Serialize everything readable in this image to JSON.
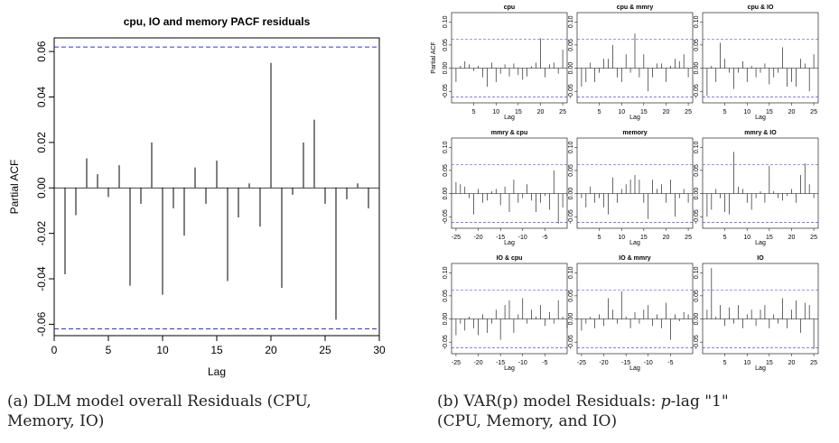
{
  "captions": {
    "a": {
      "line1": "(a) DLM model overall Residuals (CPU,",
      "line2": "Memory, IO)"
    },
    "b": {
      "line1_pre": "(b) VAR(p) model Residuals: ",
      "line1_p": "p",
      "line1_post": "-lag \"1\"",
      "line2": "(CPU, Memory, and IO)"
    }
  },
  "chart_data": [
    {
      "type": "bar",
      "title": "cpu, IO and memory PACF residuals",
      "xlabel": "Lag",
      "ylabel": "Partial ACF",
      "xlim": [
        0,
        30
      ],
      "ylim": [
        -0.065,
        0.066
      ],
      "xticks": [
        0,
        5,
        10,
        15,
        20,
        25,
        30
      ],
      "yticks": [
        -0.06,
        -0.04,
        -0.02,
        0.0,
        0.02,
        0.04,
        0.06
      ],
      "ytick_labels": [
        "-0.06",
        "-0.04",
        "-0.02",
        "0.00",
        "0.02",
        "0.04",
        "0.06"
      ],
      "conf_bound": 0.062,
      "x": [
        1,
        2,
        3,
        4,
        5,
        6,
        7,
        8,
        9,
        10,
        11,
        12,
        13,
        14,
        15,
        16,
        17,
        18,
        19,
        20,
        21,
        22,
        23,
        24,
        25,
        26,
        27,
        28,
        29
      ],
      "values": [
        -0.038,
        -0.012,
        0.013,
        0.006,
        -0.004,
        0.01,
        -0.043,
        -0.007,
        0.02,
        -0.047,
        -0.009,
        -0.021,
        0.009,
        -0.007,
        0.012,
        -0.041,
        -0.013,
        0.002,
        -0.017,
        0.055,
        -0.044,
        -0.003,
        0.02,
        0.03,
        -0.007,
        -0.058,
        -0.005,
        0.002,
        -0.009
      ],
      "grid": false
    },
    {
      "type": "bar",
      "title": "cpu",
      "xlabel": "Lag",
      "ylabel": "Partial ACF",
      "ylim": [
        -0.075,
        0.12
      ],
      "conf_bound": 0.062,
      "yticks": [
        -0.05,
        0.0,
        0.05,
        0.1
      ],
      "ytick_labels": [
        "-0.05",
        "0.00",
        "0.05",
        "0.10"
      ],
      "xlim": [
        0,
        26
      ],
      "xticks": [
        5,
        10,
        15,
        20,
        25
      ],
      "x": [
        1,
        2,
        3,
        4,
        5,
        6,
        7,
        8,
        9,
        10,
        11,
        12,
        13,
        14,
        15,
        16,
        17,
        18,
        19,
        20,
        21,
        22,
        23,
        24,
        25
      ],
      "values": [
        -0.03,
        0.005,
        0.015,
        0.008,
        -0.006,
        0.005,
        -0.02,
        -0.04,
        0.012,
        -0.03,
        -0.012,
        0.008,
        -0.018,
        0.01,
        -0.015,
        -0.025,
        -0.018,
        0.004,
        0.012,
        0.065,
        -0.02,
        0.008,
        0.012,
        -0.012,
        0.04
      ]
    },
    {
      "type": "bar",
      "title": "cpu & mmry",
      "xlabel": "Lag",
      "ylim": [
        -0.075,
        0.12
      ],
      "conf_bound": 0.062,
      "yticks": [
        -0.05,
        0.0,
        0.05,
        0.1
      ],
      "ytick_labels": [
        "-0.05",
        "0.00",
        "0.05",
        "0.10"
      ],
      "xlim": [
        0,
        26
      ],
      "xticks": [
        5,
        10,
        15,
        20,
        25
      ],
      "x": [
        1,
        2,
        3,
        4,
        5,
        6,
        7,
        8,
        9,
        10,
        11,
        12,
        13,
        14,
        15,
        16,
        17,
        18,
        19,
        20,
        21,
        22,
        23,
        24,
        25
      ],
      "values": [
        -0.04,
        -0.03,
        0.012,
        -0.03,
        -0.01,
        0.02,
        0.02,
        0.05,
        -0.02,
        -0.03,
        0.03,
        -0.01,
        0.075,
        -0.02,
        0.03,
        -0.05,
        -0.02,
        0.01,
        0.01,
        -0.03,
        0.005,
        0.02,
        0.015,
        0.03,
        -0.02
      ]
    },
    {
      "type": "bar",
      "title": "cpu & IO",
      "xlabel": "Lag",
      "ylim": [
        -0.075,
        0.12
      ],
      "conf_bound": 0.062,
      "yticks": [
        -0.05,
        0.0,
        0.05,
        0.1
      ],
      "ytick_labels": [
        "-0.05",
        "0.00",
        "0.05",
        "0.10"
      ],
      "xlim": [
        0,
        26
      ],
      "xticks": [
        5,
        10,
        15,
        20,
        25
      ],
      "x": [
        1,
        2,
        3,
        4,
        5,
        6,
        7,
        8,
        9,
        10,
        11,
        12,
        13,
        14,
        15,
        16,
        17,
        18,
        19,
        20,
        21,
        22,
        23,
        24,
        25
      ],
      "values": [
        -0.06,
        0.005,
        -0.03,
        0.055,
        0.02,
        -0.01,
        -0.045,
        -0.01,
        0.015,
        -0.03,
        0.005,
        -0.02,
        -0.01,
        0.01,
        -0.035,
        -0.02,
        -0.01,
        0.045,
        -0.04,
        -0.03,
        -0.04,
        0.02,
        0.01,
        -0.05,
        0.03
      ]
    },
    {
      "type": "bar",
      "title": "mmry & cpu",
      "xlabel": "Lag",
      "ylim": [
        -0.075,
        0.12
      ],
      "conf_bound": 0.062,
      "yticks": [
        -0.05,
        0.0,
        0.05,
        0.1
      ],
      "ytick_labels": [
        "-0.05",
        "0.00",
        "0.05",
        "0.10"
      ],
      "xlim": [
        -26,
        0
      ],
      "xticks": [
        -25,
        -20,
        -15,
        -10,
        -5
      ],
      "x": [
        -25,
        -24,
        -23,
        -22,
        -21,
        -20,
        -19,
        -18,
        -17,
        -16,
        -15,
        -14,
        -13,
        -12,
        -11,
        -10,
        -9,
        -8,
        -7,
        -6,
        -5,
        -4,
        -3,
        -2,
        -1,
        0
      ],
      "values": [
        0.025,
        0.02,
        0.015,
        -0.01,
        -0.045,
        0.01,
        -0.02,
        -0.015,
        0.005,
        0.01,
        -0.025,
        0.015,
        -0.04,
        0.03,
        -0.02,
        -0.01,
        0.02,
        -0.015,
        -0.04,
        -0.02,
        -0.005,
        -0.035,
        0.05,
        -0.065,
        -0.03,
        -0.005
      ]
    },
    {
      "type": "bar",
      "title": "memory",
      "xlabel": "Lag",
      "ylim": [
        -0.075,
        0.12
      ],
      "conf_bound": 0.062,
      "yticks": [
        -0.05,
        0.0,
        0.05,
        0.1
      ],
      "ytick_labels": [
        "-0.05",
        "0.00",
        "0.05",
        "0.10"
      ],
      "xlim": [
        0,
        26
      ],
      "xticks": [
        5,
        10,
        15,
        20,
        25
      ],
      "x": [
        1,
        2,
        3,
        4,
        5,
        6,
        7,
        8,
        9,
        10,
        11,
        12,
        13,
        14,
        15,
        16,
        17,
        18,
        19,
        20,
        21,
        22,
        23,
        24,
        25
      ],
      "values": [
        -0.01,
        -0.03,
        0.015,
        -0.02,
        -0.01,
        -0.03,
        -0.045,
        0.035,
        -0.02,
        0.01,
        0.02,
        0.03,
        0.04,
        0.03,
        -0.02,
        -0.055,
        0.03,
        0.01,
        0.02,
        -0.02,
        0.03,
        -0.05,
        -0.01,
        0.01,
        -0.02
      ]
    },
    {
      "type": "bar",
      "title": "mmry & IO",
      "xlabel": "Lag",
      "ylim": [
        -0.075,
        0.12
      ],
      "conf_bound": 0.062,
      "yticks": [
        -0.05,
        0.0,
        0.05,
        0.1
      ],
      "ytick_labels": [
        "-0.05",
        "0.00",
        "0.05",
        "0.10"
      ],
      "xlim": [
        0,
        26
      ],
      "xticks": [
        5,
        10,
        15,
        20,
        25
      ],
      "x": [
        1,
        2,
        3,
        4,
        5,
        6,
        7,
        8,
        9,
        10,
        11,
        12,
        13,
        14,
        15,
        16,
        17,
        18,
        19,
        20,
        21,
        22,
        23,
        24,
        25
      ],
      "values": [
        -0.05,
        -0.035,
        0.01,
        -0.01,
        -0.04,
        -0.045,
        0.09,
        0.015,
        0.01,
        -0.02,
        -0.035,
        -0.01,
        0.005,
        -0.02,
        0.06,
        0.005,
        -0.01,
        -0.015,
        -0.005,
        0.01,
        -0.02,
        0.04,
        0.065,
        0.02,
        -0.01
      ]
    },
    {
      "type": "bar",
      "title": "IO & cpu",
      "xlabel": "Lag",
      "ylim": [
        -0.075,
        0.12
      ],
      "conf_bound": 0.062,
      "yticks": [
        -0.05,
        0.0,
        0.05,
        0.1
      ],
      "ytick_labels": [
        "-0.05",
        "0.00",
        "0.05",
        "0.10"
      ],
      "xlim": [
        -26,
        0
      ],
      "xticks": [
        -25,
        -20,
        -15,
        -10,
        -5
      ],
      "x": [
        -25,
        -24,
        -23,
        -22,
        -21,
        -20,
        -19,
        -18,
        -17,
        -16,
        -15,
        -14,
        -13,
        -12,
        -11,
        -10,
        -9,
        -8,
        -7,
        -6,
        -5,
        -4,
        -3,
        -2,
        -1,
        0
      ],
      "values": [
        -0.035,
        -0.01,
        -0.025,
        0.005,
        -0.02,
        -0.035,
        0.01,
        -0.03,
        -0.01,
        0.02,
        -0.045,
        0.03,
        0.04,
        -0.03,
        0.01,
        0.045,
        -0.01,
        0.02,
        0.005,
        0.03,
        -0.015,
        0.015,
        -0.01,
        0.04,
        0.005,
        -0.02
      ]
    },
    {
      "type": "bar",
      "title": "IO & mmry",
      "xlabel": "Lag",
      "ylim": [
        -0.075,
        0.12
      ],
      "conf_bound": 0.062,
      "yticks": [
        -0.05,
        0.0,
        0.05,
        0.1
      ],
      "ytick_labels": [
        "-0.05",
        "0.00",
        "0.05",
        "0.10"
      ],
      "xlim": [
        -26,
        0
      ],
      "xticks": [
        -25,
        -20,
        -15,
        -10,
        -5
      ],
      "x": [
        -25,
        -24,
        -23,
        -22,
        -21,
        -20,
        -19,
        -18,
        -17,
        -16,
        -15,
        -14,
        -13,
        -12,
        -11,
        -10,
        -9,
        -8,
        -7,
        -6,
        -5,
        -4,
        -3,
        -2,
        -1,
        0
      ],
      "values": [
        -0.025,
        -0.01,
        0.005,
        -0.02,
        0.01,
        -0.015,
        0.045,
        0.02,
        -0.01,
        0.06,
        0.005,
        -0.02,
        0.015,
        -0.01,
        0.02,
        0.03,
        -0.015,
        0.01,
        -0.02,
        0.035,
        -0.045,
        0.01,
        -0.005,
        0.015,
        0.01,
        -0.01
      ]
    },
    {
      "type": "bar",
      "title": "IO",
      "xlabel": "Lag",
      "ylim": [
        -0.075,
        0.12
      ],
      "conf_bound": 0.062,
      "yticks": [
        -0.05,
        0.0,
        0.05,
        0.1
      ],
      "ytick_labels": [
        "-0.05",
        "0.00",
        "0.05",
        "0.10"
      ],
      "xlim": [
        0,
        26
      ],
      "xticks": [
        5,
        10,
        15,
        20,
        25
      ],
      "x": [
        1,
        2,
        3,
        4,
        5,
        6,
        7,
        8,
        9,
        10,
        11,
        12,
        13,
        14,
        15,
        16,
        17,
        18,
        19,
        20,
        21,
        22,
        23,
        24,
        25
      ],
      "values": [
        0.02,
        0.11,
        0.005,
        0.03,
        -0.015,
        0.025,
        -0.01,
        0.03,
        -0.02,
        0.01,
        0.02,
        -0.015,
        0.02,
        0.03,
        -0.02,
        0.01,
        -0.01,
        0.045,
        -0.02,
        0.02,
        0.04,
        -0.03,
        0.035,
        0.03,
        -0.065
      ]
    }
  ]
}
